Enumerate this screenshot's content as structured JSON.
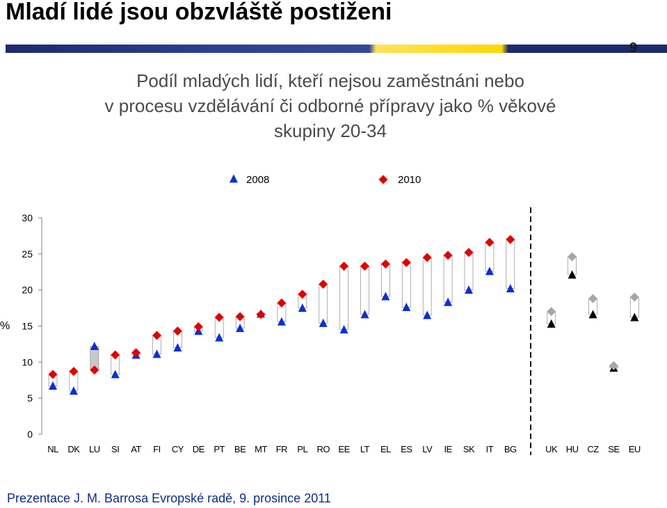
{
  "slide": {
    "title": "Mladí lidé jsou obzvláště postiženi",
    "page_number": "9",
    "footer": "Prezentace J. M. Barrosa Evropské radě, 9. prosince 2011"
  },
  "colors": {
    "series_2008": "#0a2fd6",
    "series_2010": "#e00000",
    "reference_2008": "#000000",
    "reference_2010": "#a6a6a6",
    "connector": "#9a9a9a"
  },
  "chart_data": {
    "type": "scatter",
    "title_lines": [
      "Podíl mladých lidí, kteří nejsou zaměstnáni nebo",
      "v procesu vzdělávání či odborné přípravy jako % věkové",
      "skupiny 20-34"
    ],
    "ylabel": "%",
    "ylim": [
      0,
      30
    ],
    "yticks": [
      "0",
      "5",
      "10",
      "15",
      "20",
      "25",
      "30"
    ],
    "legend": {
      "placement": "top",
      "entries": [
        "2008",
        "2010"
      ]
    },
    "categories": [
      "NL",
      "DK",
      "LU",
      "SI",
      "AT",
      "FI",
      "CY",
      "DE",
      "PT",
      "BE",
      "MT",
      "FR",
      "PL",
      "RO",
      "EE",
      "LT",
      "EL",
      "ES",
      "LV",
      "IE",
      "SK",
      "IT",
      "BG",
      "UK",
      "HU",
      "CZ",
      "SE",
      "EU"
    ],
    "series": [
      {
        "name": "2008",
        "marker": "triangle",
        "values": [
          6.7,
          6.0,
          12.2,
          8.3,
          11.0,
          11.1,
          12.0,
          14.3,
          13.4,
          14.7,
          16.7,
          15.6,
          17.5,
          15.4,
          14.5,
          16.6,
          19.1,
          17.6,
          16.5,
          18.3,
          20.0,
          22.6,
          20.2,
          15.3,
          22.1,
          16.6,
          9.2,
          16.2
        ]
      },
      {
        "name": "2010",
        "marker": "diamond",
        "values": [
          8.3,
          8.7,
          8.9,
          11.0,
          11.3,
          13.7,
          14.3,
          14.9,
          16.2,
          16.3,
          16.6,
          18.2,
          19.4,
          20.8,
          23.3,
          23.3,
          23.6,
          23.8,
          24.5,
          24.8,
          25.2,
          26.6,
          27.0,
          17.0,
          24.6,
          18.8,
          9.5,
          19.0
        ]
      }
    ],
    "reference_group": [
      "UK",
      "HU",
      "CZ",
      "SE",
      "EU"
    ]
  }
}
